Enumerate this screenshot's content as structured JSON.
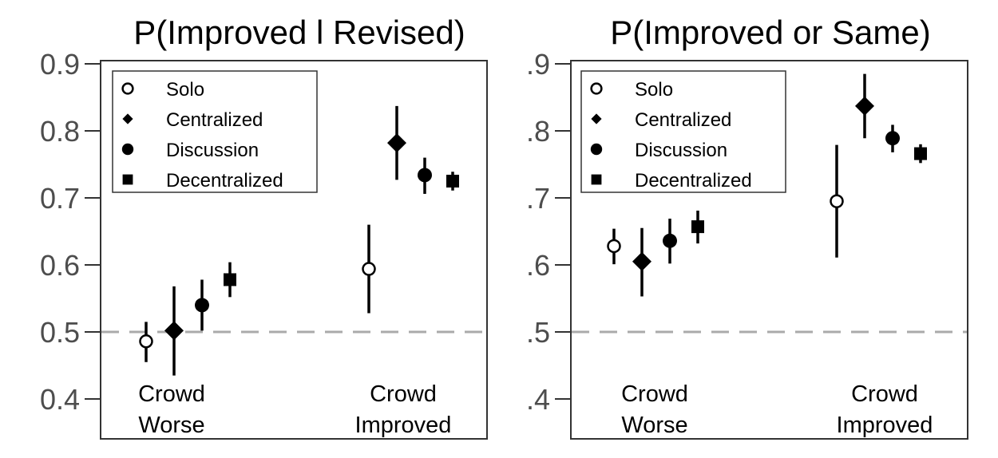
{
  "chart_data": [
    {
      "type": "scatter",
      "title": "P(Improved l Revised)",
      "ylim": [
        0.38,
        0.93
      ],
      "yticks": [
        0.4,
        0.5,
        0.6,
        0.7,
        0.8,
        0.9
      ],
      "ytick_labels": [
        "0.4",
        "0.5",
        "0.6",
        "0.7",
        "0.8",
        "0.9"
      ],
      "reference_line": 0.5,
      "groups": [
        {
          "label": [
            "Crowd",
            "Worse"
          ]
        },
        {
          "label": [
            "Crowd",
            "Improved"
          ]
        }
      ],
      "series": [
        {
          "name": "Solo",
          "marker": "open-circle",
          "points": [
            {
              "y": 0.486,
              "lo": 0.455,
              "hi": 0.515
            },
            {
              "y": 0.594,
              "lo": 0.528,
              "hi": 0.66
            }
          ]
        },
        {
          "name": "Centralized",
          "marker": "diamond",
          "points": [
            {
              "y": 0.502,
              "lo": 0.435,
              "hi": 0.568
            },
            {
              "y": 0.782,
              "lo": 0.727,
              "hi": 0.837
            }
          ]
        },
        {
          "name": "Discussion",
          "marker": "filled-circle",
          "points": [
            {
              "y": 0.54,
              "lo": 0.502,
              "hi": 0.578
            },
            {
              "y": 0.734,
              "lo": 0.706,
              "hi": 0.76
            }
          ]
        },
        {
          "name": "Decentralized",
          "marker": "square",
          "points": [
            {
              "y": 0.578,
              "lo": 0.552,
              "hi": 0.604
            },
            {
              "y": 0.725,
              "lo": 0.711,
              "hi": 0.739
            }
          ]
        }
      ],
      "legend_position": "top-left",
      "grid": false
    },
    {
      "type": "scatter",
      "title": "P(Improved or Same)",
      "ylim": [
        0.38,
        0.93
      ],
      "yticks": [
        0.4,
        0.5,
        0.6,
        0.7,
        0.8,
        0.9
      ],
      "ytick_labels": [
        ".4",
        ".5",
        ".6",
        ".7",
        ".8",
        ".9"
      ],
      "reference_line": 0.5,
      "groups": [
        {
          "label": [
            "Crowd",
            "Worse"
          ]
        },
        {
          "label": [
            "Crowd",
            "Improved"
          ]
        }
      ],
      "series": [
        {
          "name": "Solo",
          "marker": "open-circle",
          "points": [
            {
              "y": 0.628,
              "lo": 0.601,
              "hi": 0.654
            },
            {
              "y": 0.695,
              "lo": 0.611,
              "hi": 0.779
            }
          ]
        },
        {
          "name": "Centralized",
          "marker": "diamond",
          "points": [
            {
              "y": 0.605,
              "lo": 0.553,
              "hi": 0.655
            },
            {
              "y": 0.837,
              "lo": 0.789,
              "hi": 0.885
            }
          ]
        },
        {
          "name": "Discussion",
          "marker": "filled-circle",
          "points": [
            {
              "y": 0.636,
              "lo": 0.602,
              "hi": 0.669
            },
            {
              "y": 0.789,
              "lo": 0.768,
              "hi": 0.809
            }
          ]
        },
        {
          "name": "Decentralized",
          "marker": "square",
          "points": [
            {
              "y": 0.657,
              "lo": 0.632,
              "hi": 0.681
            },
            {
              "y": 0.766,
              "lo": 0.752,
              "hi": 0.78
            }
          ]
        }
      ],
      "legend_position": "top-left",
      "grid": false
    }
  ],
  "colors": {
    "marker": "#000000",
    "reference_line": "#aaaaaa",
    "frame": "#333333",
    "tick_text": "#4d4d4d"
  }
}
